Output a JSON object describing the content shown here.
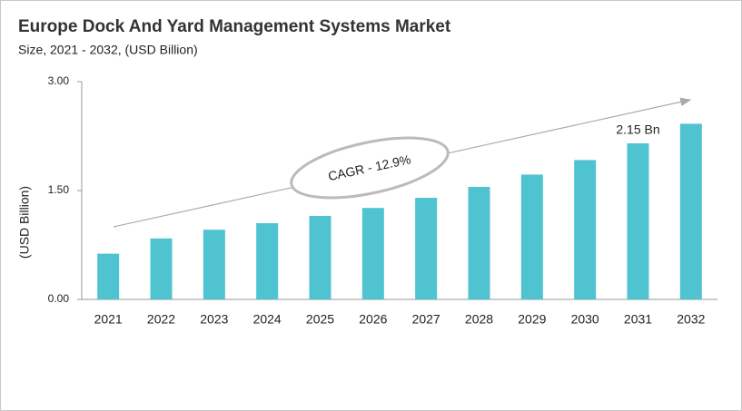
{
  "chart_data": {
    "type": "bar",
    "title": "Europe Dock And Yard Management Systems Market",
    "subtitle": "Size, 2021 - 2032, (USD Billion)",
    "y_label": "(USD Billion)",
    "annotation": "CAGR - 12.9%",
    "categories": [
      "2021",
      "2022",
      "2023",
      "2024",
      "2025",
      "2026",
      "2027",
      "2028",
      "2029",
      "2030",
      "2031",
      "2032"
    ],
    "values": [
      0.63,
      0.84,
      0.96,
      1.05,
      1.15,
      1.26,
      1.4,
      1.55,
      1.72,
      1.92,
      2.15,
      2.42
    ],
    "value_labels": [
      null,
      null,
      null,
      null,
      null,
      null,
      null,
      null,
      null,
      null,
      "2.15 Bn",
      null
    ],
    "color": "#4fc3cf",
    "ylim": [
      0,
      3
    ],
    "yticks": [
      {
        "value": 0,
        "label": "0.00"
      },
      {
        "value": 1.5,
        "label": "1.50"
      },
      {
        "value": 3,
        "label": "3.00"
      }
    ]
  }
}
